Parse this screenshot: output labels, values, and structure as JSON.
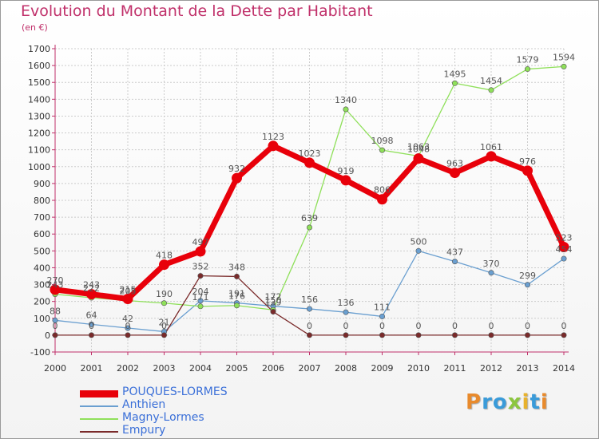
{
  "title": "Evolution du Montant de la Dette par Habitant",
  "subtitle": "(en €)",
  "logo_text": "Proxiti",
  "chart_data": {
    "type": "line",
    "x": [
      2000,
      2001,
      2002,
      2003,
      2004,
      2005,
      2006,
      2007,
      2008,
      2009,
      2010,
      2011,
      2012,
      2013,
      2014
    ],
    "ylim": [
      -100,
      1700
    ],
    "ytick_step": 100,
    "grid": true,
    "legend_position": "bottom-left",
    "series": [
      {
        "name": "POUQUES-LORMES",
        "color": "#e8000a",
        "emphasis": true,
        "values": [
          270,
          243,
          215,
          418,
          497,
          932,
          1123,
          1023,
          919,
          806,
          1048,
          963,
          1061,
          976,
          523
        ]
      },
      {
        "name": "Anthien",
        "color": "#6a9fd0",
        "emphasis": false,
        "values": [
          88,
          64,
          42,
          21,
          204,
          191,
          172,
          156,
          136,
          111,
          500,
          437,
          370,
          299,
          454
        ]
      },
      {
        "name": "Magny-Lormes",
        "color": "#8fe05a",
        "emphasis": false,
        "values": [
          243,
          222,
          205,
          190,
          171,
          176,
          150,
          639,
          1340,
          1098,
          1063,
          1495,
          1454,
          1579,
          1594
        ]
      },
      {
        "name": "Empury",
        "color": "#7a2a2a",
        "emphasis": false,
        "values": [
          0,
          0,
          0,
          0,
          352,
          348,
          139,
          0,
          0,
          0,
          0,
          0,
          0,
          0,
          0
        ]
      }
    ]
  }
}
